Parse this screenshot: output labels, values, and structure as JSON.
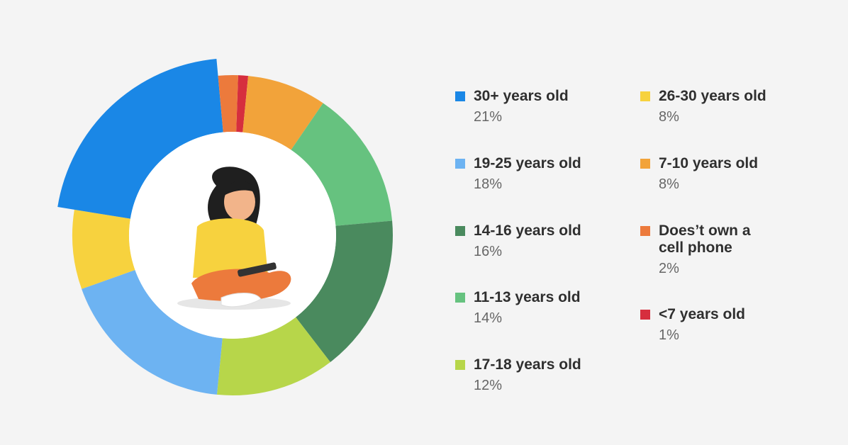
{
  "chart_data": {
    "type": "donut",
    "categories": [
      "30+ years old",
      "19-25 years old",
      "14-16 years old",
      "11-13 years old",
      "17-18 years old",
      "26-30 years old",
      "7-10 years old",
      "Does’t own a cell phone",
      "<7 years old"
    ],
    "values": [
      21,
      18,
      16,
      14,
      12,
      8,
      8,
      2,
      1
    ],
    "value_labels": [
      "21%",
      "18%",
      "16%",
      "14%",
      "12%",
      "8%",
      "8%",
      "2%",
      "1%"
    ],
    "colors": [
      "#1a87e6",
      "#6db3f2",
      "#4a8a5e",
      "#66c27f",
      "#b7d64a",
      "#f7d23e",
      "#f2a33a",
      "#ec7a3c",
      "#d62e3e"
    ]
  }
}
